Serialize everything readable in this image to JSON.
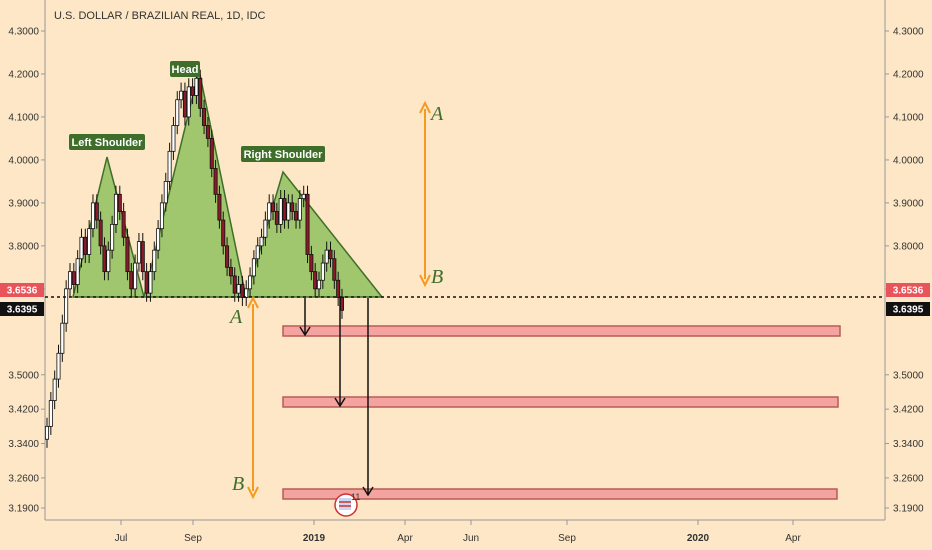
{
  "header": {
    "title": "U.S. DOLLAR / BRAZILIAN REAL, 1D, IDC"
  },
  "colors": {
    "background": "#fde7c6",
    "candle_up": "#ffffff",
    "candle_down": "#8b1a2a",
    "candle_outline": "#111111",
    "pattern_fill": "#8fbf5e",
    "pattern_stroke": "#3f6e2a",
    "label_bg": "#3f6e2a",
    "label_text": "#ffffff",
    "projection_arrow": "#f59a1e",
    "target_box_fill": "#f5a3a0",
    "target_box_stroke": "#b85c57",
    "price_tag_red": "#e8545a",
    "price_tag_black": "#111111",
    "letter_A_B": "#3f6e2a"
  },
  "annotations": {
    "left_shoulder": "Left Shoulder",
    "head": "Head",
    "right_shoulder": "Right Shoulder",
    "letter_a": "A",
    "letter_b": "B",
    "event_badge": "11"
  },
  "chart_data": {
    "type": "candlestick",
    "title": "U.S. DOLLAR / BRAZILIAN REAL, 1D, IDC",
    "x_ticks": [
      "Jul",
      "Sep",
      "2019",
      "Apr",
      "Jun",
      "Sep",
      "2020",
      "Apr"
    ],
    "y_ticks": [
      "4.3000",
      "4.2000",
      "4.1000",
      "4.0000",
      "3.9000",
      "3.8000",
      "3.7000",
      "3.5000",
      "3.4200",
      "3.3400",
      "3.2600",
      "3.1900"
    ],
    "ylim": [
      3.16,
      4.34
    ],
    "price_tags": {
      "last": "3.6536",
      "neckline": "3.6395"
    },
    "neckline": 3.6395,
    "targets": [
      3.56,
      3.41,
      3.22
    ],
    "pattern_points": [
      3.6395,
      3.97,
      3.6395,
      4.2,
      3.6395,
      3.94,
      3.6395
    ],
    "candle_closes": [
      3.38,
      3.44,
      3.49,
      3.55,
      3.62,
      3.7,
      3.74,
      3.71,
      3.77,
      3.82,
      3.78,
      3.84,
      3.9,
      3.86,
      3.8,
      3.74,
      3.79,
      3.85,
      3.92,
      3.88,
      3.82,
      3.74,
      3.7,
      3.76,
      3.81,
      3.74,
      3.69,
      3.74,
      3.79,
      3.84,
      3.9,
      3.95,
      4.02,
      4.08,
      4.14,
      4.16,
      4.1,
      4.17,
      4.15,
      4.19,
      4.12,
      4.08,
      4.05,
      3.98,
      3.92,
      3.86,
      3.8,
      3.75,
      3.73,
      3.69,
      3.71,
      3.68,
      3.7,
      3.73,
      3.77,
      3.8,
      3.82,
      3.86,
      3.9,
      3.88,
      3.85,
      3.91,
      3.86,
      3.9,
      3.88,
      3.86,
      3.91,
      3.92,
      3.78,
      3.74,
      3.7,
      3.72,
      3.76,
      3.79,
      3.77,
      3.72,
      3.68,
      3.65
    ]
  }
}
